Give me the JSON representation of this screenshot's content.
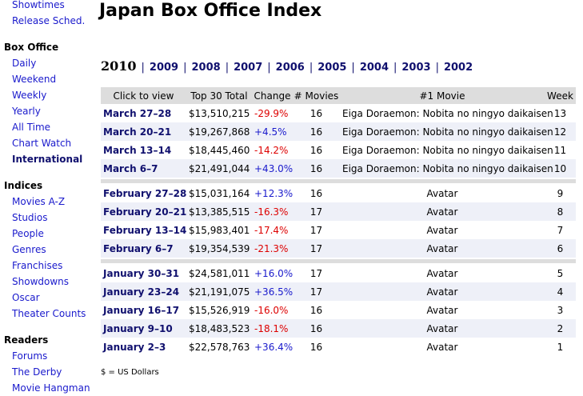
{
  "sidebar": [
    {
      "heading": null,
      "links": [
        "Showtimes",
        "Release Sched."
      ]
    },
    {
      "heading": "Box Office",
      "links": [
        "Daily",
        "Weekend",
        "Weekly",
        "Yearly",
        "All Time",
        "Chart Watch",
        "International"
      ]
    },
    {
      "heading": "Indices",
      "links": [
        "Movies A-Z",
        "Studios",
        "People",
        "Genres",
        "Franchises",
        "Showdowns",
        "Oscar",
        "Theater Counts"
      ]
    },
    {
      "heading": "Readers",
      "links": [
        "Forums",
        "The Derby",
        "Movie Hangman"
      ]
    }
  ],
  "title": "Japan Box Office Index",
  "current_year": "2010",
  "years": [
    "2009",
    "2008",
    "2007",
    "2006",
    "2005",
    "2004",
    "2003",
    "2002"
  ],
  "separator": "|",
  "table": {
    "header": [
      "Click to view",
      "Top 30 Total",
      "Change",
      "# Movies",
      "#1 Movie",
      "Week"
    ],
    "groups": [
      [
        [
          "March 27–28",
          "$13,510,215",
          "-29.9%",
          "16",
          "Eiga Doraemon: Nobita no ningyo daikaisen",
          "13"
        ],
        [
          "March 20–21",
          "$19,267,868",
          "+4.5%",
          "16",
          "Eiga Doraemon: Nobita no ningyo daikaisen",
          "12"
        ],
        [
          "March 13–14",
          "$18,445,460",
          "-14.2%",
          "16",
          "Eiga Doraemon: Nobita no ningyo daikaisen",
          "11"
        ],
        [
          "March 6–7",
          "$21,491,044",
          "+43.0%",
          "16",
          "Eiga Doraemon: Nobita no ningyo daikaisen",
          "10"
        ]
      ],
      [
        [
          "February 27–28",
          "$15,031,164",
          "+12.3%",
          "16",
          "Avatar",
          "9"
        ],
        [
          "February 20–21",
          "$13,385,515",
          "-16.3%",
          "17",
          "Avatar",
          "8"
        ],
        [
          "February 13–14",
          "$15,983,401",
          "-17.4%",
          "17",
          "Avatar",
          "7"
        ],
        [
          "February 6–7",
          "$19,354,539",
          "-21.3%",
          "17",
          "Avatar",
          "6"
        ]
      ],
      [
        [
          "January 30–31",
          "$24,581,011",
          "+16.0%",
          "17",
          "Avatar",
          "5"
        ],
        [
          "January 23–24",
          "$21,191,075",
          "+36.5%",
          "17",
          "Avatar",
          "4"
        ],
        [
          "January 16–17",
          "$15,526,919",
          "-16.0%",
          "16",
          "Avatar",
          "3"
        ],
        [
          "January 9–10",
          "$18,483,523",
          "-18.1%",
          "16",
          "Avatar",
          "2"
        ],
        [
          "January 2–3",
          "$22,578,763",
          "+36.4%",
          "16",
          "Avatar",
          "1"
        ]
      ]
    ]
  },
  "footnote": "$ = US Dollars"
}
